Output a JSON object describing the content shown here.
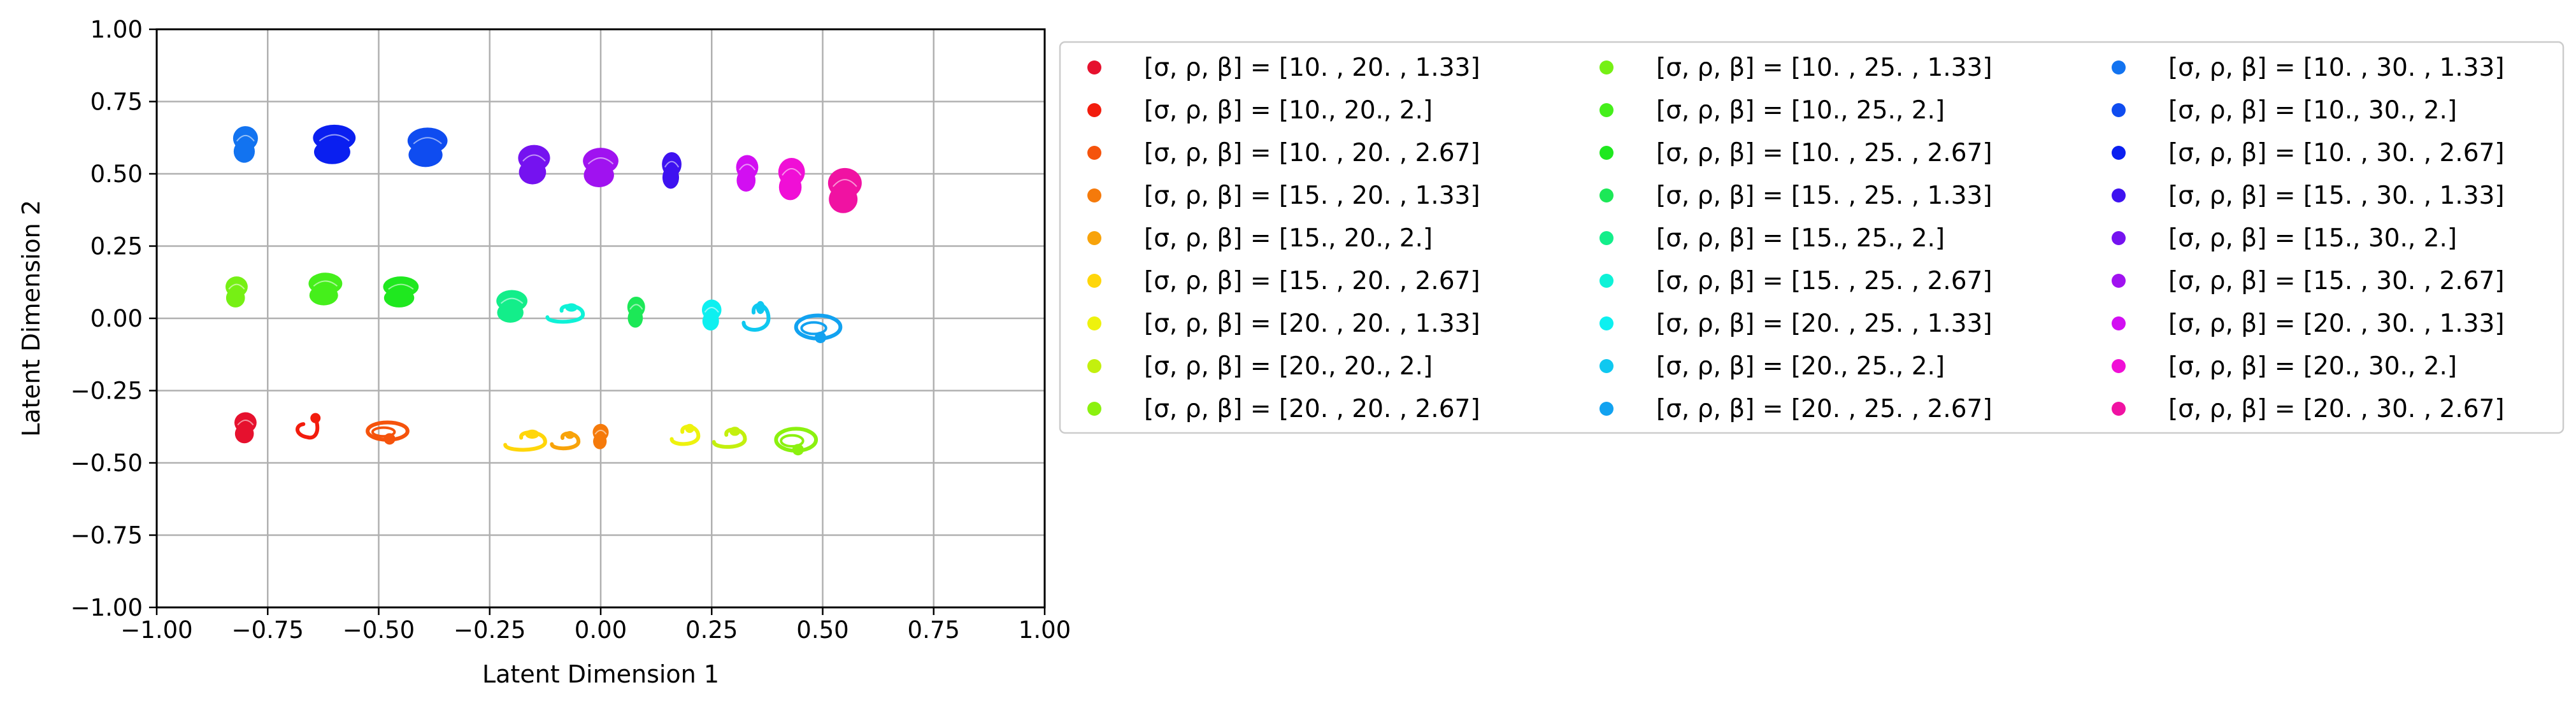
{
  "chart_data": {
    "type": "scatter",
    "xlabel": "Latent Dimension 1",
    "ylabel": "Latent Dimension 2",
    "xlim": [
      -1.0,
      1.0
    ],
    "ylim": [
      -1.0,
      1.0
    ],
    "xticks": [
      "−1.00",
      "−0.75",
      "−0.50",
      "−0.25",
      "0.00",
      "0.25",
      "0.50",
      "0.75",
      "1.00"
    ],
    "yticks": [
      "1.00",
      "0.75",
      "0.50",
      "0.25",
      "0.00",
      "−0.25",
      "−0.50",
      "−0.75",
      "−1.00"
    ],
    "grid": true,
    "legend_position": "outside-right",
    "legend_columns": 3,
    "series": [
      {
        "name": "[σ, ρ, β] = [10.  , 20.  ,  1.33]",
        "color": "#e6112e",
        "shape": "blob",
        "cx": -0.8,
        "cy": -0.38,
        "rx": 0.025,
        "ry": 0.055
      },
      {
        "name": "[σ, ρ, β] = [10., 20.,  2.]",
        "color": "#f21c0d",
        "shape": "hook",
        "cx": -0.66,
        "cy": -0.38,
        "rx": 0.032,
        "ry": 0.035
      },
      {
        "name": "[σ, ρ, β] = [10.  , 20.  ,  2.67]",
        "color": "#f5530c",
        "shape": "loop",
        "cx": -0.48,
        "cy": -0.39,
        "rx": 0.045,
        "ry": 0.03
      },
      {
        "name": "[σ, ρ, β] = [15.  , 20.  ,  1.33]",
        "color": "#f57a0b",
        "shape": "blob",
        "cx": 0.0,
        "cy": -0.41,
        "rx": 0.018,
        "ry": 0.045
      },
      {
        "name": "[σ, ρ, β] = [15., 20.,  2.]",
        "color": "#f8a30a",
        "shape": "swirl",
        "cx": -0.08,
        "cy": -0.42,
        "rx": 0.03,
        "ry": 0.03
      },
      {
        "name": "[σ, ρ, β] = [15.  , 20.  ,  2.67]",
        "color": "#ffd60a",
        "shape": "swirl",
        "cx": -0.17,
        "cy": -0.42,
        "rx": 0.045,
        "ry": 0.035
      },
      {
        "name": "[σ, ρ, β] = [20.  , 20.  ,  1.33]",
        "color": "#eef20d",
        "shape": "swirl",
        "cx": 0.19,
        "cy": -0.4,
        "rx": 0.03,
        "ry": 0.035
      },
      {
        "name": "[σ, ρ, β] = [20., 20.,  2.]",
        "color": "#c3f00e",
        "shape": "swirl",
        "cx": 0.29,
        "cy": -0.41,
        "rx": 0.035,
        "ry": 0.035
      },
      {
        "name": "[σ, ρ, β] = [20.  , 20.  ,  2.67]",
        "color": "#8bf10f",
        "shape": "loop",
        "cx": 0.44,
        "cy": -0.42,
        "rx": 0.045,
        "ry": 0.038
      },
      {
        "name": "[σ, ρ, β] = [10.  , 25.  ,  1.33]",
        "color": "#76f014",
        "shape": "blob",
        "cx": -0.82,
        "cy": 0.09,
        "rx": 0.025,
        "ry": 0.055
      },
      {
        "name": "[σ, ρ, β] = [10., 25.,  2.]",
        "color": "#45ef1b",
        "shape": "blob",
        "cx": -0.62,
        "cy": 0.1,
        "rx": 0.038,
        "ry": 0.058
      },
      {
        "name": "[σ, ρ, β] = [10.  , 25.  ,  2.67]",
        "color": "#1fe81f",
        "shape": "blob",
        "cx": -0.45,
        "cy": 0.09,
        "rx": 0.04,
        "ry": 0.055
      },
      {
        "name": "[σ, ρ, β] = [15.  , 25.  ,  1.33]",
        "color": "#1ce857",
        "shape": "blob",
        "cx": 0.08,
        "cy": 0.02,
        "rx": 0.02,
        "ry": 0.055
      },
      {
        "name": "[σ, ρ, β] = [15., 25.,  2.]",
        "color": "#13ee8a",
        "shape": "blob",
        "cx": -0.2,
        "cy": 0.04,
        "rx": 0.035,
        "ry": 0.058
      },
      {
        "name": "[σ, ρ, β] = [15.  , 25.  ,  2.67]",
        "color": "#0ef2d7",
        "shape": "swirl",
        "cx": -0.08,
        "cy": 0.02,
        "rx": 0.04,
        "ry": 0.032
      },
      {
        "name": "[σ, ρ, β] = [20.  , 25.  ,  1.33]",
        "color": "#0df0f0",
        "shape": "blob",
        "cx": 0.25,
        "cy": 0.01,
        "rx": 0.022,
        "ry": 0.055
      },
      {
        "name": "[σ, ρ, β] = [20., 25.,  2.]",
        "color": "#0fc8f0",
        "shape": "swirl",
        "cx": 0.35,
        "cy": 0.01,
        "rx": 0.028,
        "ry": 0.05
      },
      {
        "name": "[σ, ρ, β] = [20.  , 25.  ,  2.67]",
        "color": "#12a2f0",
        "shape": "loop",
        "cx": 0.49,
        "cy": -0.03,
        "rx": 0.05,
        "ry": 0.04
      },
      {
        "name": "[σ, ρ, β] = [10.  , 30.  ,  1.33]",
        "color": "#1273f0",
        "shape": "blob",
        "cx": -0.8,
        "cy": 0.6,
        "rx": 0.028,
        "ry": 0.065
      },
      {
        "name": "[σ, ρ, β] = [10., 30.,  2.]",
        "color": "#0f4cf0",
        "shape": "blob",
        "cx": -0.39,
        "cy": 0.59,
        "rx": 0.045,
        "ry": 0.07
      },
      {
        "name": "[σ, ρ, β] = [10.  , 30.  ,  2.67]",
        "color": "#0a1ff0",
        "shape": "blob",
        "cx": -0.6,
        "cy": 0.6,
        "rx": 0.048,
        "ry": 0.07
      },
      {
        "name": "[σ, ρ, β] = [15.  , 30.  ,  1.33]",
        "color": "#3e12f0",
        "shape": "blob",
        "cx": 0.16,
        "cy": 0.51,
        "rx": 0.022,
        "ry": 0.065
      },
      {
        "name": "[σ, ρ, β] = [15., 30.,  2.]",
        "color": "#7512f0",
        "shape": "blob",
        "cx": -0.15,
        "cy": 0.53,
        "rx": 0.036,
        "ry": 0.07
      },
      {
        "name": "[σ, ρ, β] = [15.  , 30.  ,  2.67]",
        "color": "#a012f0",
        "shape": "blob",
        "cx": 0.0,
        "cy": 0.52,
        "rx": 0.04,
        "ry": 0.07
      },
      {
        "name": "[σ, ρ, β] = [20.  , 30.  ,  1.33]",
        "color": "#d20ff2",
        "shape": "blob",
        "cx": 0.33,
        "cy": 0.5,
        "rx": 0.025,
        "ry": 0.065
      },
      {
        "name": "[σ, ρ, β] = [20., 30.,  2.]",
        "color": "#f00fd6",
        "shape": "blob",
        "cx": 0.43,
        "cy": 0.48,
        "rx": 0.03,
        "ry": 0.075
      },
      {
        "name": "[σ, ρ, β] = [20.  , 30.  ,  2.67]",
        "color": "#f012a2",
        "shape": "blob",
        "cx": 0.55,
        "cy": 0.44,
        "rx": 0.038,
        "ry": 0.08
      }
    ]
  }
}
